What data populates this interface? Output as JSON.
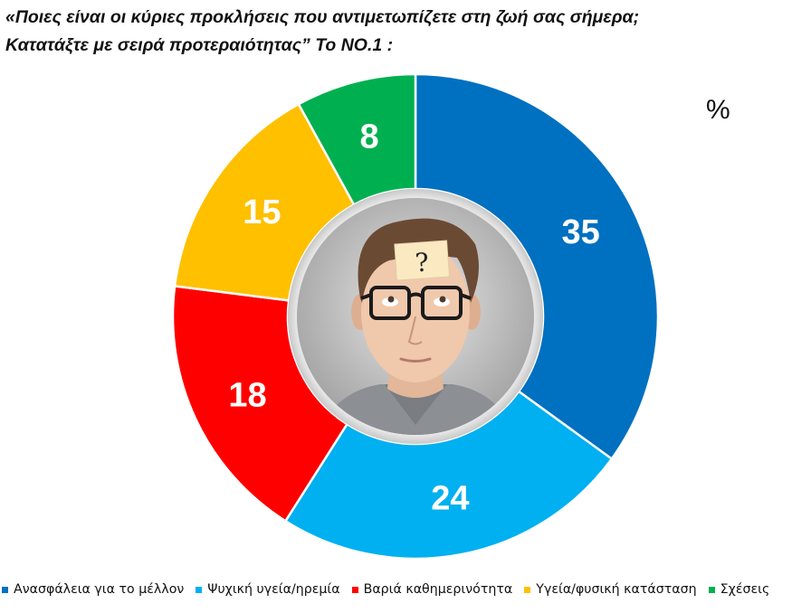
{
  "title_lines": [
    "«Ποιες είναι οι κύριες προκλήσεις που αντιμετωπίζετε στη ζωή σας σήμερα;",
    "Κατατάξτε με σειρά προτεραιότητας” Το ΝΟ.1 :"
  ],
  "unit_label": "%",
  "chart_data": {
    "type": "pie",
    "donut": true,
    "center_image": "portrait-young-man-glasses-question-mark",
    "legend_position": "bottom",
    "slices": [
      {
        "label": "Ανασφάλεια για το μέλλον",
        "value": 35,
        "display": "35",
        "color": "#0070c0"
      },
      {
        "label": "Ψυχική υγεία/ηρεμία",
        "value": 24,
        "display": "24",
        "color": "#00b0f0"
      },
      {
        "label": "Βαριά καθημερινότητα",
        "value": 18,
        "display": "18",
        "color": "#ff0000"
      },
      {
        "label": "Υγεία/φυσική κατάσταση",
        "value": 15,
        "display": "15",
        "color": "#ffc000"
      },
      {
        "label": "Σχέσεις",
        "value": 8,
        "display": "8",
        "color": "#00b050"
      }
    ]
  }
}
